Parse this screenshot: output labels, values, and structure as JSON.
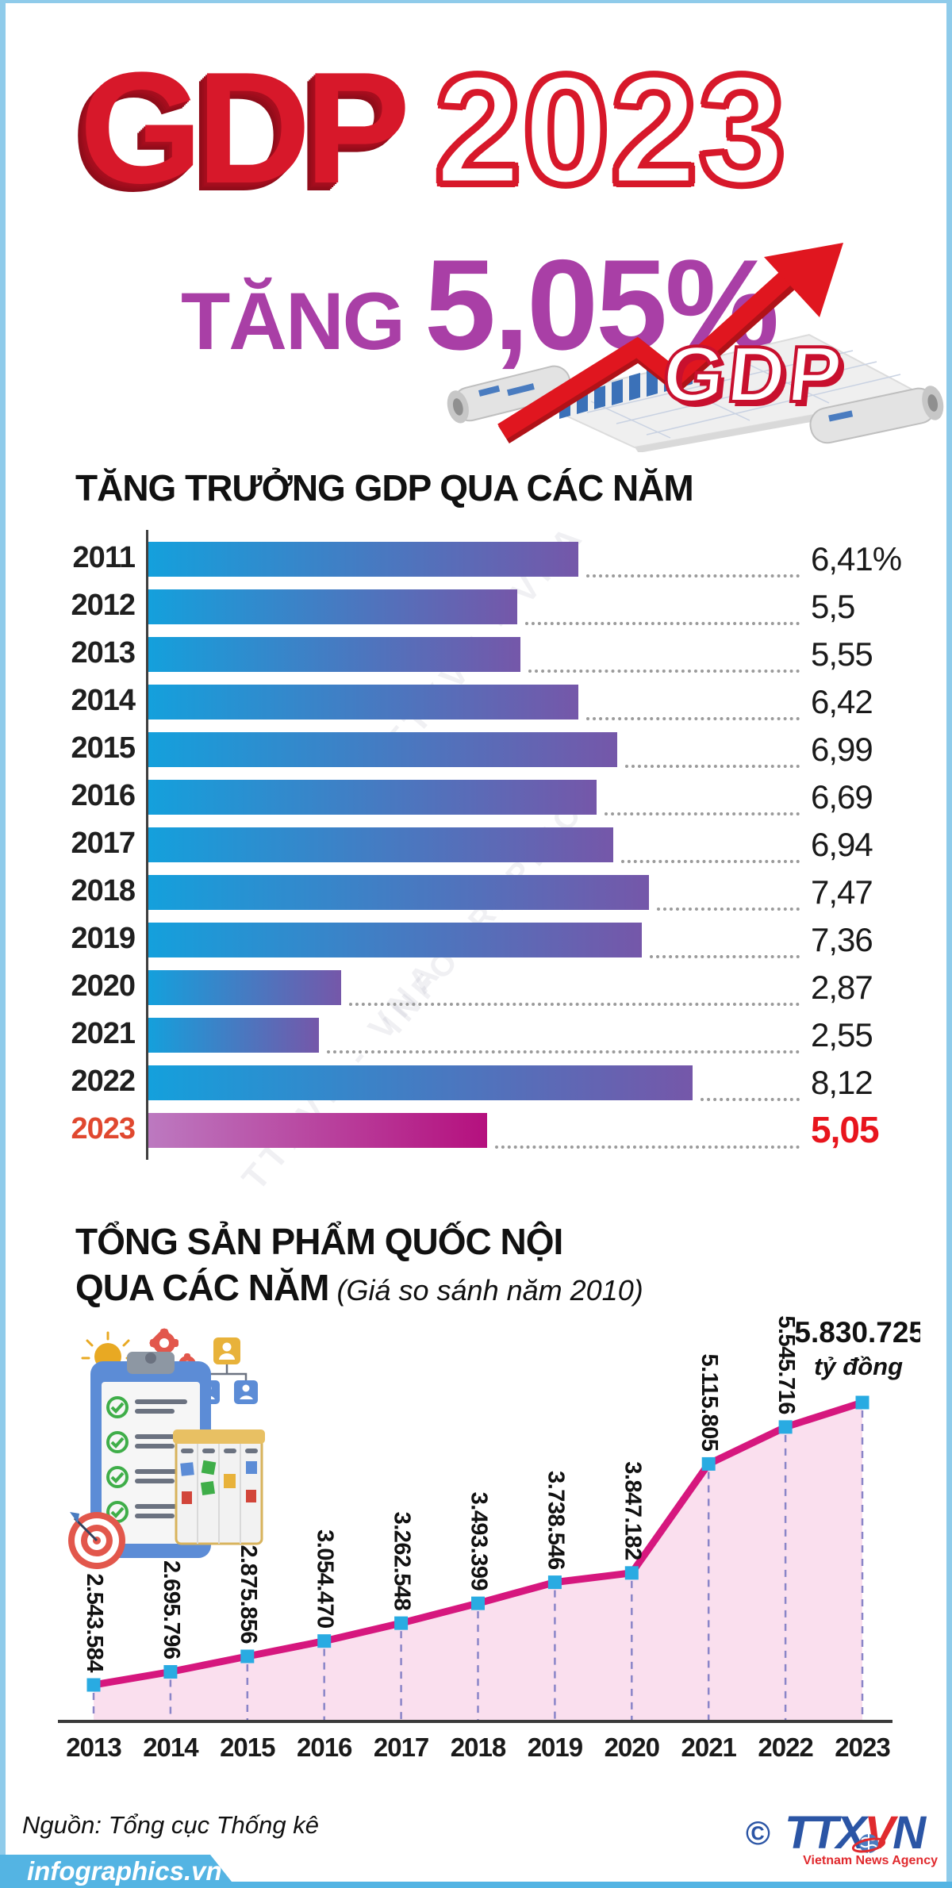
{
  "page": {
    "border_color": "#8FCBEA",
    "background": "#FFFFFF"
  },
  "header": {
    "title_main": "GDP",
    "title_year": "2023",
    "subtitle_word": "TĂNG",
    "subtitle_value": "5,05%"
  },
  "section_growth": {
    "title": "TĂNG TRƯỞNG GDP QUA CÁC NĂM"
  },
  "section_total": {
    "title_line1": "TỔNG SẢN PHẨM QUỐC NỘI",
    "title_line2": "QUA CÁC NĂM",
    "title_note": "(Giá so sánh năm 2010)"
  },
  "chart_data": [
    {
      "type": "bar",
      "orientation": "horizontal",
      "title": "TĂNG TRƯỞNG GDP QUA CÁC NĂM",
      "unit": "%",
      "categories": [
        "2011",
        "2012",
        "2013",
        "2014",
        "2015",
        "2016",
        "2017",
        "2018",
        "2019",
        "2020",
        "2021",
        "2022",
        "2023"
      ],
      "values": [
        6.41,
        5.5,
        5.55,
        6.42,
        6.99,
        6.69,
        6.94,
        7.47,
        7.36,
        2.87,
        2.55,
        8.12,
        5.05
      ],
      "value_labels": [
        "6,41%",
        "5,5",
        "5,55",
        "6,42",
        "6,99",
        "6,69",
        "6,94",
        "7,47",
        "7,36",
        "2,87",
        "2,55",
        "8,12",
        "5,05"
      ],
      "xlim": [
        0,
        8.6
      ],
      "highlight_index": 12,
      "bar_gradient": [
        "#14A0DC",
        "#7557A9"
      ],
      "highlight_gradient": [
        "#BC79C0",
        "#B5107E"
      ],
      "year_color": "#1F1F1F",
      "highlight_year_color": "#E0482F",
      "value_color": "#1A1A1A",
      "highlight_value_color": "#E8151D"
    },
    {
      "type": "line",
      "title": "TỔNG SẢN PHẨM QUỐC NỘI QUA CÁC NĂM (Giá so sánh năm 2010)",
      "x": [
        "2013",
        "2014",
        "2015",
        "2016",
        "2017",
        "2018",
        "2019",
        "2020",
        "2021",
        "2022",
        "2023"
      ],
      "values": [
        2543584,
        2695796,
        2875856,
        3054470,
        3262548,
        3493399,
        3738546,
        3847182,
        5115805,
        5545716,
        5830725
      ],
      "value_labels": [
        "2.543.584",
        "2.695.796",
        "2.875.856",
        "3.054.470",
        "3.262.548",
        "3.493.399",
        "3.738.546",
        "3.847.182",
        "5.115.805",
        "5.545.716",
        "5.830.725"
      ],
      "last_value_label": "5.830.725",
      "last_value_unit": "tỷ đồng",
      "ylim": [
        2400000,
        6100000
      ],
      "grid": false,
      "line_color": "#D6177E",
      "marker_color": "#29ABE2",
      "area_color": "#FADFEE",
      "dash_color": "#8A85C8",
      "axis_color": "#3A3A3A"
    }
  ],
  "watermarks": [
    "TTXVN - VNA",
    "INFOGRAPHICS",
    "TTXVN - VNA",
    "INFOGRAPHICS"
  ],
  "footer": {
    "source": "Nguồn: Tổng cục Thống kê",
    "site": "infographics.vn",
    "copyright": "©",
    "agency_abbr_1": "TTX",
    "agency_abbr_2": "V",
    "agency_abbr_3": "N",
    "agency_name": "Vietnam News Agency",
    "band_color": "#54B4E3"
  }
}
